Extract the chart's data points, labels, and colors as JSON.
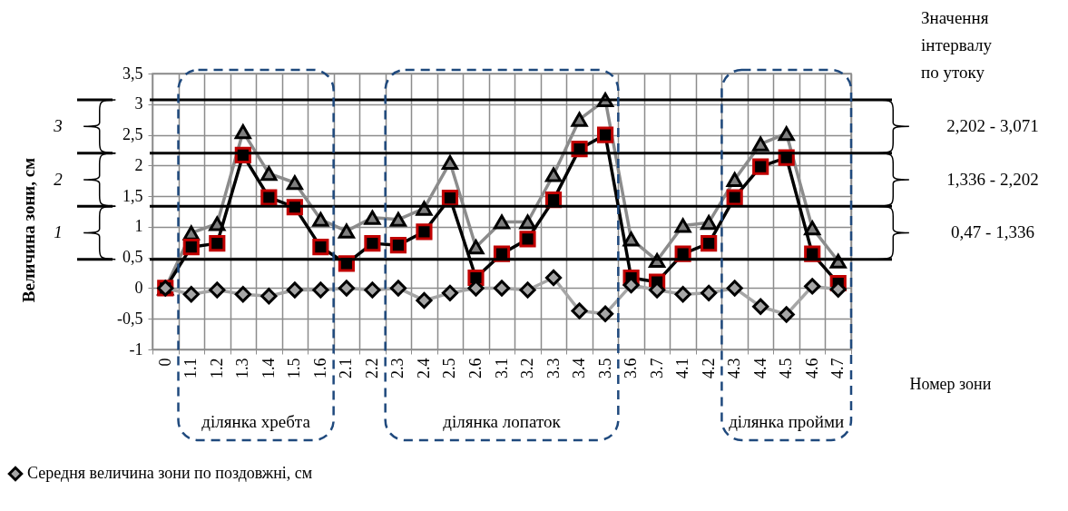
{
  "chart_data": {
    "type": "line",
    "ylabel": "Величина зони, см",
    "xlabel": "Номер зони",
    "categories": [
      "0",
      "1.1",
      "1.2",
      "1.3",
      "1.4",
      "1.5",
      "1.6",
      "2.1",
      "2.2",
      "2.3",
      "2.4",
      "2.5",
      "2.6",
      "3.1",
      "3.2",
      "3.3",
      "3.4",
      "3.5",
      "3.6",
      "3.7",
      "4.1",
      "4.2",
      "4.3",
      "4.4",
      "4.5",
      "4.6",
      "4.7"
    ],
    "series": [
      {
        "color": "#8c8c8c",
        "marker": "triangle",
        "values": [
          0,
          0.9,
          1.05,
          2.55,
          1.87,
          1.72,
          1.12,
          0.93,
          1.15,
          1.12,
          1.3,
          2.05,
          0.67,
          1.08,
          1.08,
          1.85,
          2.75,
          3.07,
          0.8,
          0.45,
          1.02,
          1.07,
          1.77,
          2.35,
          2.52,
          0.98,
          0.44
        ]
      },
      {
        "color": "#000000",
        "marker": "square",
        "values": [
          0,
          0.67,
          0.73,
          2.17,
          1.48,
          1.32,
          0.67,
          0.4,
          0.73,
          0.7,
          0.92,
          1.47,
          0.17,
          0.56,
          0.8,
          1.44,
          2.27,
          2.5,
          0.17,
          0.1,
          0.56,
          0.73,
          1.48,
          1.98,
          2.13,
          0.56,
          0.08
        ]
      },
      {
        "name": "Середня величина  зони по поздовжні, см",
        "color": "#a6a6a6",
        "marker": "diamond",
        "values": [
          0,
          -0.1,
          -0.03,
          -0.1,
          -0.13,
          -0.03,
          -0.03,
          0,
          -0.03,
          0,
          -0.2,
          -0.08,
          0,
          0,
          -0.03,
          0.17,
          -0.37,
          -0.42,
          0.05,
          -0.03,
          -0.1,
          -0.08,
          0,
          -0.3,
          -0.43,
          0.03,
          -0.02
        ]
      }
    ],
    "ylim": [
      -1,
      3.5
    ],
    "yticks": [
      {
        "value": -1,
        "label": "-1"
      },
      {
        "value": -0.5,
        "label": "-0,5"
      },
      {
        "value": 0,
        "label": "0"
      },
      {
        "value": 0.5,
        "label": "0,5"
      },
      {
        "value": 1,
        "label": "1"
      },
      {
        "value": 1.5,
        "label": "1,5"
      },
      {
        "value": 2,
        "label": "2"
      },
      {
        "value": 2.5,
        "label": "2,5"
      },
      {
        "value": 3,
        "label": "3"
      },
      {
        "value": 3.5,
        "label": "3,5"
      }
    ],
    "grid": true,
    "legend": "bottom left",
    "ref_lines": [
      {
        "axis": "y",
        "value": 0.47,
        "color": "#000000"
      },
      {
        "axis": "y",
        "value": 1.336,
        "color": "#000000"
      },
      {
        "axis": "y",
        "value": 2.202,
        "color": "#000000"
      },
      {
        "axis": "y",
        "value": 3.071,
        "color": "#000000"
      }
    ],
    "annotations": [
      "Значення\nінтервалу\nпо утоку",
      "0,47 - 1,336",
      "1,336  -  2,202",
      "2,202  -  3,071",
      "1",
      "2",
      "3",
      "ділянка хребта",
      "ділянка  лопаток",
      "ділянка пройми"
    ]
  }
}
